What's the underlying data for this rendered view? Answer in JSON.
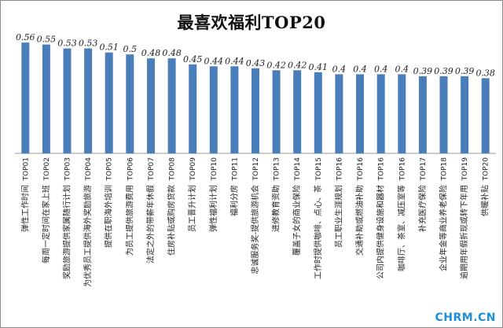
{
  "chart_data": {
    "type": "bar",
    "title": "最喜欢福利TOP20",
    "ranks": [
      "TOP01",
      "TOP02",
      "TOP03",
      "TOP04",
      "TOP05",
      "TOP06",
      "TOP07",
      "TOP08",
      "TOP09",
      "TOP10",
      "TOP11",
      "TOP12",
      "TOP13",
      "TOP14",
      "TOP15",
      "TOP16",
      "TOP16",
      "TOP16",
      "TOP16",
      "TOP17",
      "TOP18",
      "TOP19",
      "TOP20"
    ],
    "categories": [
      "弹性工作时间",
      "每周一定时间在家上班",
      "奖励旅游提供家属随行计划",
      "为优秀员工提供海外奖励旅游",
      "提供在职海外培训",
      "为员工提供旅游费用",
      "法定之外的带薪年休假",
      "住房补贴或购房贷款",
      "员工晋升计划",
      "弹性福利计划",
      "福利分房",
      "忠诚服务奖-提供旅游机会",
      "进修教育资助",
      "覆盖子女的商业保险",
      "工作时提供咖啡、点心、茶",
      "员工职业生涯规划",
      "交通补助或燃油补助",
      "公司内提供健身设施和器材",
      "咖啡厅、茶室、减压室等",
      "补充医疗保险",
      "企业年金等商业养老保险",
      "逾期用年假折现或转下年用",
      "供暖补贴"
    ],
    "values": [
      0.56,
      0.55,
      0.53,
      0.53,
      0.51,
      0.5,
      0.48,
      0.48,
      0.45,
      0.44,
      0.44,
      0.43,
      0.42,
      0.42,
      0.41,
      0.4,
      0.4,
      0.4,
      0.4,
      0.39,
      0.39,
      0.39,
      0.38
    ],
    "value_labels": [
      "0.56",
      "0.55",
      "0.53",
      "0.53",
      "0.51",
      "0.5",
      "0.48",
      "0.48",
      "0.45",
      "0.44",
      "0.44",
      "0.43",
      "0.42",
      "0.42",
      "0.41",
      "0.4",
      "0.4",
      "0.4",
      "0.4",
      "0.39",
      "0.39",
      "0.39",
      "0.38"
    ],
    "ylim": [
      0,
      0.62
    ],
    "bar_color": "#4a7ebb",
    "grid": false,
    "legend": "none"
  },
  "watermark": "CHRM.CN"
}
